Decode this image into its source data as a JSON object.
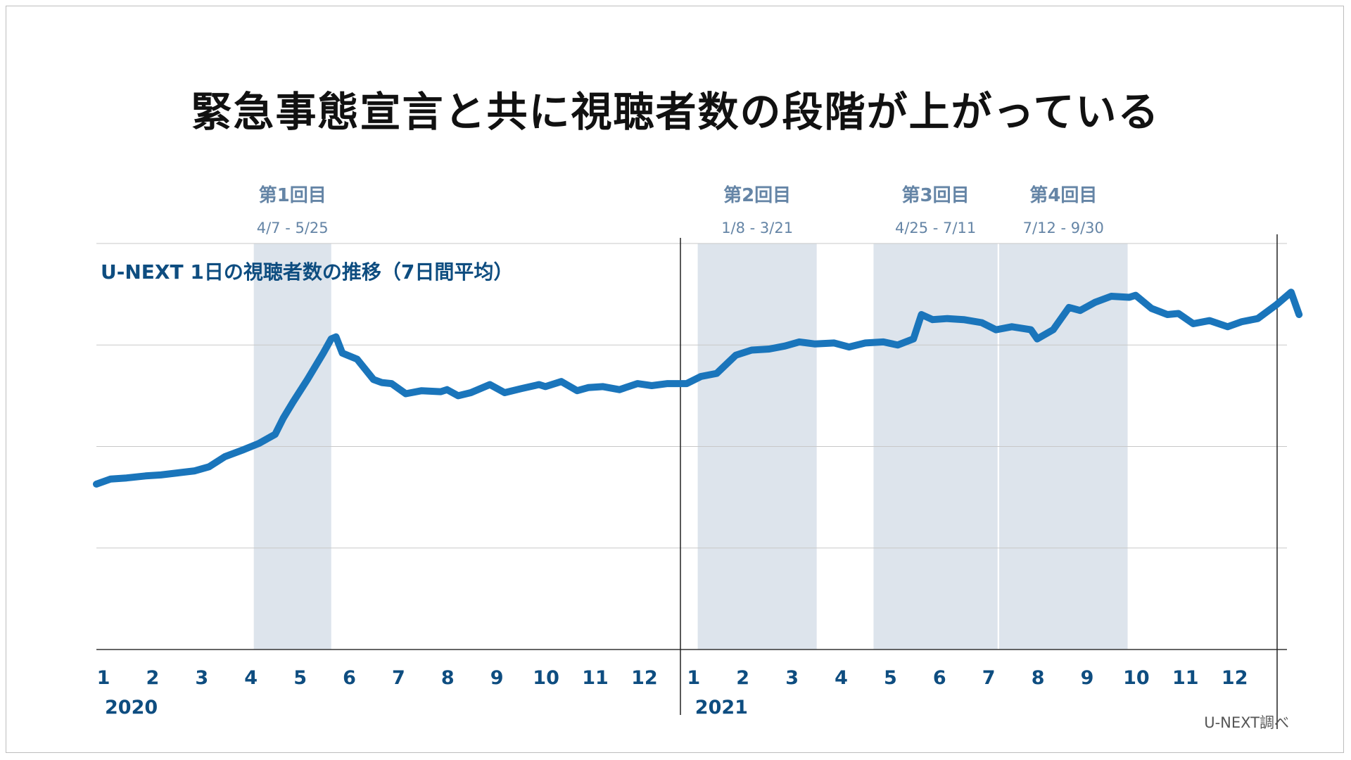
{
  "title": "緊急事態宣言と共に視聴者数の段階が上がっている",
  "source": "U-NEXT調べ",
  "chart_data": {
    "type": "line",
    "title": "緊急事態宣言と共に視聴者数の段階が上がっている",
    "series_label": "U-NEXT 1日の視聴者数の推移（7日間平均）",
    "xlabel": "",
    "ylabel": "",
    "x_range": [
      "2020-01-01",
      "2021-12-31"
    ],
    "ylim": [
      0,
      4
    ],
    "grid": "horizontal",
    "line_color": "#1a75bb",
    "band_color": "#dde4ec",
    "month_ticks": [
      {
        "date": "2020-01-01",
        "label": "1"
      },
      {
        "date": "2020-02-01",
        "label": "2"
      },
      {
        "date": "2020-03-01",
        "label": "3"
      },
      {
        "date": "2020-04-01",
        "label": "4"
      },
      {
        "date": "2020-05-01",
        "label": "5"
      },
      {
        "date": "2020-06-01",
        "label": "6"
      },
      {
        "date": "2020-07-01",
        "label": "7"
      },
      {
        "date": "2020-08-01",
        "label": "8"
      },
      {
        "date": "2020-09-01",
        "label": "9"
      },
      {
        "date": "2020-10-01",
        "label": "10"
      },
      {
        "date": "2020-11-01",
        "label": "11"
      },
      {
        "date": "2020-12-01",
        "label": "12"
      },
      {
        "date": "2021-01-01",
        "label": "1"
      },
      {
        "date": "2021-02-01",
        "label": "2"
      },
      {
        "date": "2021-03-01",
        "label": "3"
      },
      {
        "date": "2021-04-01",
        "label": "4"
      },
      {
        "date": "2021-05-01",
        "label": "5"
      },
      {
        "date": "2021-06-01",
        "label": "6"
      },
      {
        "date": "2021-07-01",
        "label": "7"
      },
      {
        "date": "2021-08-01",
        "label": "8"
      },
      {
        "date": "2021-09-01",
        "label": "9"
      },
      {
        "date": "2021-10-01",
        "label": "10"
      },
      {
        "date": "2021-11-01",
        "label": "11"
      },
      {
        "date": "2021-12-01",
        "label": "12"
      }
    ],
    "years": [
      {
        "label": "2020",
        "date": "2020-01-01"
      },
      {
        "label": "2021",
        "date": "2021-01-01"
      }
    ],
    "periods": [
      {
        "name": "第1回目",
        "range": "4/7 - 5/25",
        "start": "2020-04-07",
        "end": "2020-05-25"
      },
      {
        "name": "第2回目",
        "range": "1/8 - 3/21",
        "start": "2021-01-08",
        "end": "2021-03-21"
      },
      {
        "name": "第3回目",
        "range": "4/25 - 7/11",
        "start": "2021-04-25",
        "end": "2021-07-11"
      },
      {
        "name": "第4回目",
        "range": "7/12 - 9/30",
        "start": "2021-07-12",
        "end": "2021-09-30"
      }
    ],
    "series": [
      {
        "points": [
          [
            "2020-01-01",
            1.63
          ],
          [
            "2020-01-10",
            1.68
          ],
          [
            "2020-01-20",
            1.69
          ],
          [
            "2020-02-01",
            1.71
          ],
          [
            "2020-02-10",
            1.72
          ],
          [
            "2020-02-20",
            1.74
          ],
          [
            "2020-03-01",
            1.76
          ],
          [
            "2020-03-10",
            1.8
          ],
          [
            "2020-03-20",
            1.9
          ],
          [
            "2020-04-01",
            1.97
          ],
          [
            "2020-04-10",
            2.03
          ],
          [
            "2020-04-20",
            2.12
          ],
          [
            "2020-04-25",
            2.28
          ],
          [
            "2020-05-01",
            2.44
          ],
          [
            "2020-05-10",
            2.66
          ],
          [
            "2020-05-20",
            2.92
          ],
          [
            "2020-05-25",
            3.06
          ],
          [
            "2020-05-28",
            3.08
          ],
          [
            "2020-06-01",
            2.92
          ],
          [
            "2020-06-10",
            2.86
          ],
          [
            "2020-06-20",
            2.66
          ],
          [
            "2020-06-25",
            2.63
          ],
          [
            "2020-07-01",
            2.62
          ],
          [
            "2020-07-10",
            2.52
          ],
          [
            "2020-07-20",
            2.55
          ],
          [
            "2020-08-01",
            2.54
          ],
          [
            "2020-08-05",
            2.56
          ],
          [
            "2020-08-12",
            2.5
          ],
          [
            "2020-08-20",
            2.53
          ],
          [
            "2020-09-01",
            2.61
          ],
          [
            "2020-09-10",
            2.53
          ],
          [
            "2020-09-20",
            2.57
          ],
          [
            "2020-10-01",
            2.61
          ],
          [
            "2020-10-05",
            2.59
          ],
          [
            "2020-10-15",
            2.64
          ],
          [
            "2020-10-25",
            2.55
          ],
          [
            "2020-11-01",
            2.58
          ],
          [
            "2020-11-10",
            2.59
          ],
          [
            "2020-11-20",
            2.56
          ],
          [
            "2020-12-01",
            2.62
          ],
          [
            "2020-12-10",
            2.6
          ],
          [
            "2020-12-20",
            2.62
          ],
          [
            "2021-01-01",
            2.62
          ],
          [
            "2021-01-10",
            2.69
          ],
          [
            "2021-01-20",
            2.72
          ],
          [
            "2021-02-01",
            2.9
          ],
          [
            "2021-02-10",
            2.95
          ],
          [
            "2021-02-20",
            2.96
          ],
          [
            "2021-03-01",
            2.99
          ],
          [
            "2021-03-10",
            3.03
          ],
          [
            "2021-03-20",
            3.01
          ],
          [
            "2021-04-01",
            3.02
          ],
          [
            "2021-04-10",
            2.98
          ],
          [
            "2021-04-20",
            3.02
          ],
          [
            "2021-05-01",
            3.03
          ],
          [
            "2021-05-10",
            3.0
          ],
          [
            "2021-05-20",
            3.06
          ],
          [
            "2021-05-25",
            3.3
          ],
          [
            "2021-06-01",
            3.25
          ],
          [
            "2021-06-10",
            3.26
          ],
          [
            "2021-06-20",
            3.25
          ],
          [
            "2021-07-01",
            3.22
          ],
          [
            "2021-07-10",
            3.15
          ],
          [
            "2021-07-20",
            3.18
          ],
          [
            "2021-08-01",
            3.15
          ],
          [
            "2021-08-05",
            3.06
          ],
          [
            "2021-08-15",
            3.15
          ],
          [
            "2021-08-25",
            3.37
          ],
          [
            "2021-09-01",
            3.34
          ],
          [
            "2021-09-10",
            3.42
          ],
          [
            "2021-09-20",
            3.48
          ],
          [
            "2021-10-01",
            3.47
          ],
          [
            "2021-10-05",
            3.49
          ],
          [
            "2021-10-15",
            3.36
          ],
          [
            "2021-10-25",
            3.3
          ],
          [
            "2021-11-01",
            3.31
          ],
          [
            "2021-11-10",
            3.21
          ],
          [
            "2021-11-20",
            3.24
          ],
          [
            "2021-12-01",
            3.18
          ],
          [
            "2021-12-10",
            3.23
          ],
          [
            "2021-12-20",
            3.26
          ],
          [
            "2022-01-01",
            3.4
          ],
          [
            "2022-01-10",
            3.52
          ],
          [
            "2022-01-15",
            3.3
          ]
        ]
      }
    ]
  }
}
